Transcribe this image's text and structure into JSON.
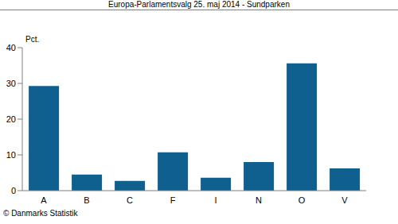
{
  "chart_data": {
    "type": "bar",
    "title": "Europa-Parlamentsvalg 25. maj 2014 - Sundparken",
    "ylabel": "Pct.",
    "source": "© Danmarks Statistik",
    "categories": [
      "A",
      "B",
      "C",
      "F",
      "I",
      "N",
      "O",
      "V"
    ],
    "values": [
      29.3,
      4.5,
      2.7,
      10.7,
      3.6,
      8.0,
      35.6,
      6.2
    ],
    "color": "#0f5f8f",
    "ylim": [
      0,
      40
    ],
    "yticks": [
      0,
      10,
      20,
      30,
      40
    ],
    "grid": false
  }
}
